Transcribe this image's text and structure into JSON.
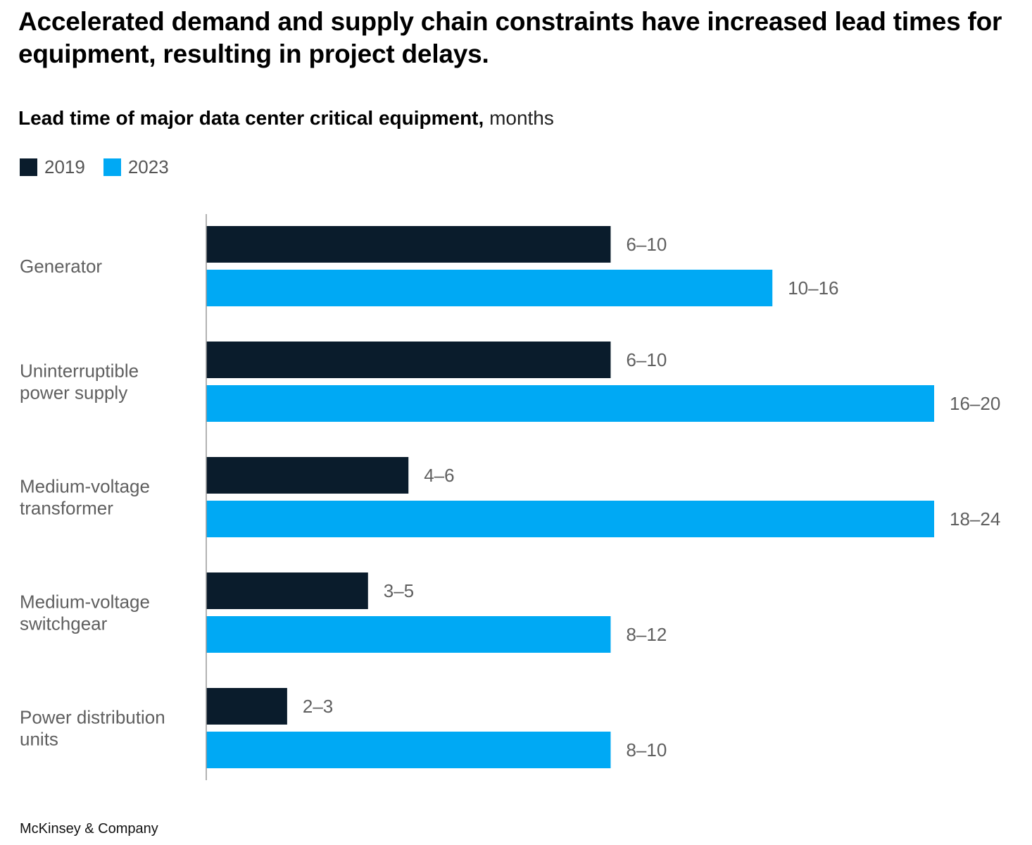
{
  "headline": "Accelerated demand and supply chain constraints have increased lead times for equipment, resulting in project delays.",
  "subtitle_bold": "Lead time of major data center critical equipment,",
  "subtitle_unit": "months",
  "footer": "McKinsey & Company",
  "colors": {
    "series_2019": "#0a1c2c",
    "series_2023": "#00a9f4",
    "axis": "#9a9a9a",
    "label": "#5f5f5f"
  },
  "chart_data": {
    "type": "bar",
    "orientation": "horizontal",
    "title": "Lead time of major data center critical equipment, months",
    "unit": "months",
    "legend_position": "top-left",
    "grid": false,
    "xlim": [
      0,
      36
    ],
    "categories": [
      [
        "Generator"
      ],
      [
        "Uninterruptible",
        "power supply"
      ],
      [
        "Medium-voltage",
        "transformer"
      ],
      [
        "Medium-voltage",
        "switchgear"
      ],
      [
        "Power distribution",
        "units"
      ]
    ],
    "series": [
      {
        "name": "2019",
        "color": "#0a1c2c",
        "values": [
          20,
          20,
          10,
          8,
          4
        ],
        "labels": [
          "6–10",
          "6–10",
          "4–6",
          "3–5",
          "2–3"
        ]
      },
      {
        "name": "2023",
        "color": "#00a9f4",
        "values": [
          28,
          36,
          36,
          20,
          20
        ],
        "labels": [
          "10–16",
          "16–20",
          "18–24",
          "8–12",
          "8–10"
        ]
      }
    ]
  }
}
